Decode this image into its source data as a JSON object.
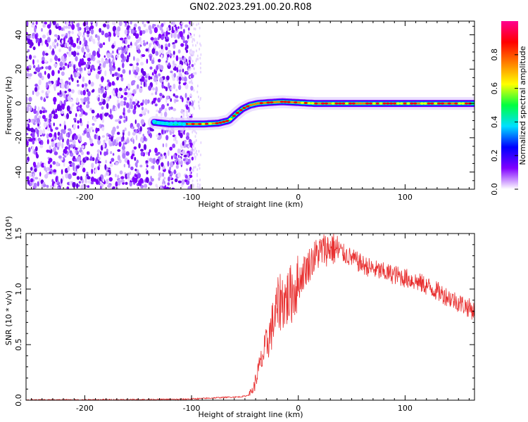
{
  "title": "GN02.2023.291.00.20.R08",
  "chart_data": [
    {
      "type": "heatmap",
      "xlabel": "Height of straight line (km)",
      "ylabel": "Frequency (Hz)",
      "xlim": [
        -255,
        165
      ],
      "ylim": [
        -50,
        48
      ],
      "x_ticks": [
        -200,
        -100,
        0,
        100
      ],
      "x_tick_labels": [
        "-200",
        "-100",
        "0",
        "100"
      ],
      "y_ticks": [
        40,
        20,
        0,
        -20,
        -40
      ],
      "y_tick_labels": [
        "40",
        "20",
        "0",
        "-20",
        "-40"
      ],
      "noise_region_x": [
        -255,
        -103
      ],
      "trace": {
        "x": [
          -135,
          -120,
          -103,
          -90,
          -75,
          -65,
          -58,
          -52,
          -45,
          -38,
          -28,
          -15,
          0,
          15,
          40,
          70,
          100,
          130,
          165
        ],
        "y": [
          -11,
          -12,
          -12,
          -12,
          -11.5,
          -10,
          -6,
          -3,
          -1,
          0,
          0.5,
          1,
          0.5,
          0,
          0,
          0,
          0,
          0,
          0
        ]
      },
      "colorbar": {
        "label": "Normalized spectral amplitude",
        "range": [
          0,
          1
        ],
        "ticks": [
          0.0,
          0.2,
          0.4,
          0.6,
          0.8
        ],
        "tick_labels": [
          "0.0",
          "0.2",
          "0.4",
          "0.6",
          "0.8"
        ],
        "colormap": [
          "#ffffff",
          "#8000ff",
          "#0000ff",
          "#00e0ff",
          "#00ff40",
          "#ffff00",
          "#ff8000",
          "#ff0000",
          "#ff0090"
        ]
      },
      "grid": false
    },
    {
      "type": "line",
      "xlabel": "Height of straight line (km)",
      "ylabel": "SNR (10 * v/v)",
      "scale_label": "(x10⁴)",
      "xlim": [
        -255,
        165
      ],
      "ylim": [
        0,
        1.5
      ],
      "x_ticks": [
        -200,
        -100,
        0,
        100
      ],
      "x_tick_labels": [
        "-200",
        "-100",
        "0",
        "100"
      ],
      "y_ticks": [
        0.0,
        0.5,
        1.0,
        1.5
      ],
      "y_tick_labels": [
        "0.0",
        "0.5",
        "1.0",
        "1.5"
      ],
      "color": "#e83030",
      "series": [
        {
          "x": [
            -255,
            -200,
            -150,
            -110,
            -90,
            -70,
            -55,
            -48,
            -42,
            -38,
            -33,
            -28,
            -22,
            -17,
            -12,
            -7,
            0,
            5,
            12,
            18,
            25,
            32,
            40,
            50,
            60,
            70,
            80,
            90,
            100,
            110,
            120,
            130,
            140,
            150,
            160,
            165
          ],
          "y": [
            0.002,
            0.003,
            0.005,
            0.008,
            0.015,
            0.025,
            0.03,
            0.04,
            0.1,
            0.25,
            0.4,
            0.55,
            0.75,
            0.9,
            0.9,
            0.95,
            1.05,
            1.15,
            1.25,
            1.32,
            1.36,
            1.37,
            1.33,
            1.28,
            1.22,
            1.18,
            1.15,
            1.13,
            1.1,
            1.07,
            1.03,
            0.98,
            0.93,
            0.88,
            0.83,
            0.8
          ]
        }
      ],
      "grid": false
    }
  ]
}
